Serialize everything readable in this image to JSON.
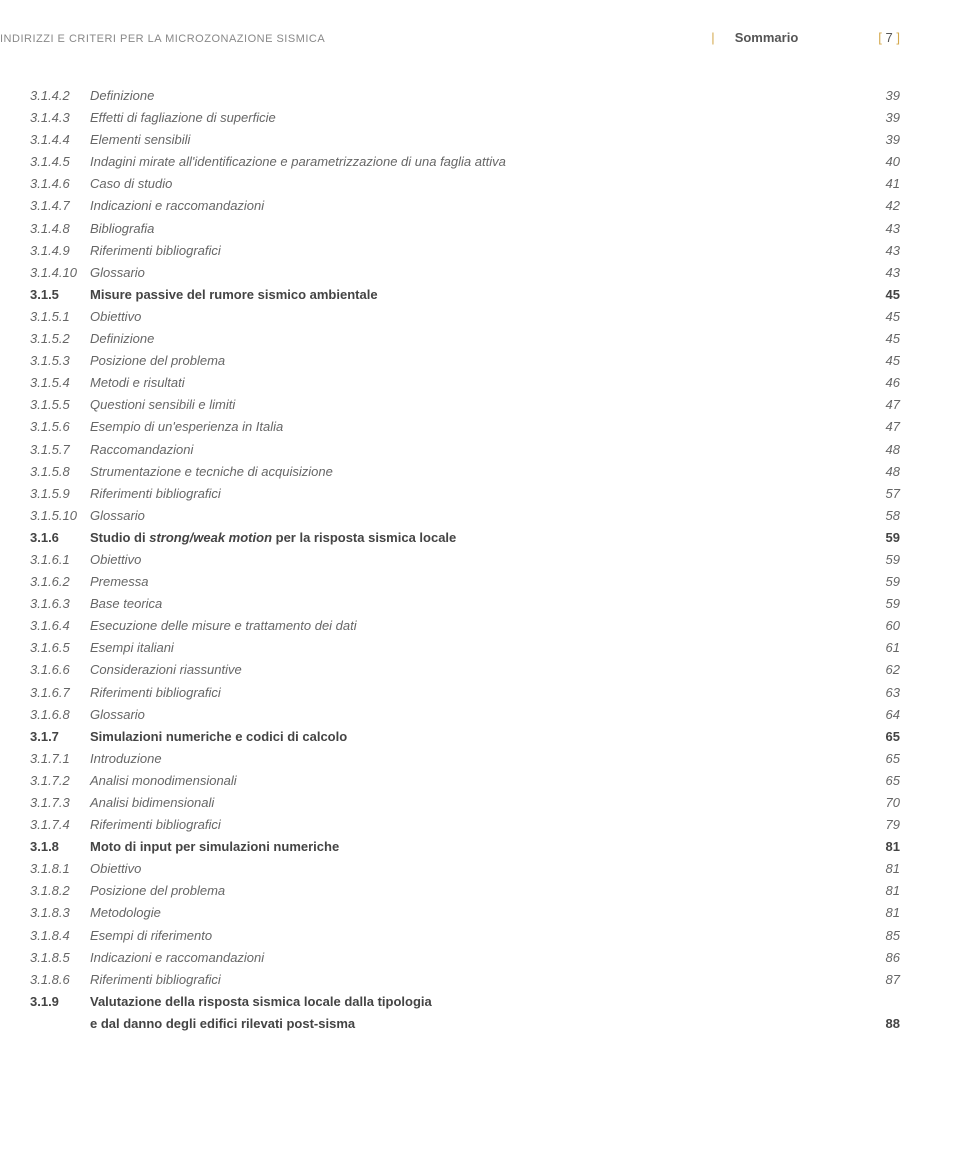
{
  "header": {
    "title": "INDIRIZZI E CRITERI PER LA MICROZONAZIONE SISMICA",
    "section": "Sommario",
    "page_bracket_open": "[",
    "page_number": "7",
    "page_bracket_close": "]",
    "divider": "|"
  },
  "toc": [
    {
      "num": "3.1.4.2",
      "label": "Definizione",
      "page": "39",
      "style": "italic light"
    },
    {
      "num": "3.1.4.3",
      "label": "Effetti di fagliazione di superficie",
      "page": "39",
      "style": "italic light"
    },
    {
      "num": "3.1.4.4",
      "label": "Elementi sensibili",
      "page": "39",
      "style": "italic light"
    },
    {
      "num": "3.1.4.5",
      "label": "Indagini mirate all'identificazione e parametrizzazione di una faglia attiva",
      "page": "40",
      "style": "italic light"
    },
    {
      "num": "3.1.4.6",
      "label": "Caso di studio",
      "page": "41",
      "style": "italic light"
    },
    {
      "num": "3.1.4.7",
      "label": "Indicazioni e raccomandazioni",
      "page": "42",
      "style": "italic light"
    },
    {
      "num": "3.1.4.8",
      "label": "Bibliografia",
      "page": "43",
      "style": "italic light"
    },
    {
      "num": "3.1.4.9",
      "label": "Riferimenti bibliografici",
      "page": "43",
      "style": "italic light"
    },
    {
      "num": "3.1.4.10",
      "label": "Glossario",
      "page": "43",
      "style": "italic light"
    },
    {
      "num": "3.1.5",
      "label": "Misure passive del rumore sismico ambientale",
      "page": "45",
      "style": "bold"
    },
    {
      "num": "3.1.5.1",
      "label": "Obiettivo",
      "page": "45",
      "style": "italic light"
    },
    {
      "num": "3.1.5.2",
      "label": "Definizione",
      "page": "45",
      "style": "italic light"
    },
    {
      "num": "3.1.5.3",
      "label": "Posizione del problema",
      "page": "45",
      "style": "italic light"
    },
    {
      "num": "3.1.5.4",
      "label": "Metodi e risultati",
      "page": "46",
      "style": "italic light"
    },
    {
      "num": "3.1.5.5",
      "label": "Questioni sensibili e limiti",
      "page": "47",
      "style": "italic light"
    },
    {
      "num": "3.1.5.6",
      "label": "Esempio di un'esperienza in Italia",
      "page": "47",
      "style": "italic light"
    },
    {
      "num": "3.1.5.7",
      "label": "Raccomandazioni",
      "page": "48",
      "style": "italic light"
    },
    {
      "num": "3.1.5.8",
      "label": "Strumentazione e tecniche di acquisizione",
      "page": "48",
      "style": "italic light"
    },
    {
      "num": "3.1.5.9",
      "label": "Riferimenti bibliografici",
      "page": "57",
      "style": "italic light"
    },
    {
      "num": "3.1.5.10",
      "label": "Glossario",
      "page": "58",
      "style": "italic light"
    },
    {
      "num": "3.1.6",
      "label": "Studio di strong/weak motion per la risposta sismica locale",
      "page": "59",
      "style": "bold",
      "label_italic_part": "strong/weak motion"
    },
    {
      "num": "3.1.6.1",
      "label": "Obiettivo",
      "page": "59",
      "style": "italic light"
    },
    {
      "num": "3.1.6.2",
      "label": "Premessa",
      "page": "59",
      "style": "italic light"
    },
    {
      "num": "3.1.6.3",
      "label": "Base teorica",
      "page": "59",
      "style": "italic light"
    },
    {
      "num": "3.1.6.4",
      "label": "Esecuzione delle misure e trattamento dei dati",
      "page": "60",
      "style": "italic light"
    },
    {
      "num": "3.1.6.5",
      "label": "Esempi italiani",
      "page": "61",
      "style": "italic light"
    },
    {
      "num": "3.1.6.6",
      "label": "Considerazioni riassuntive",
      "page": "62",
      "style": "italic light"
    },
    {
      "num": "3.1.6.7",
      "label": "Riferimenti bibliografici",
      "page": "63",
      "style": "italic light"
    },
    {
      "num": "3.1.6.8",
      "label": "Glossario",
      "page": "64",
      "style": "italic light"
    },
    {
      "num": "3.1.7",
      "label": "Simulazioni numeriche e codici di calcolo",
      "page": "65",
      "style": "bold"
    },
    {
      "num": "3.1.7.1",
      "label": "Introduzione",
      "page": "65",
      "style": "italic light"
    },
    {
      "num": "3.1.7.2",
      "label": "Analisi monodimensionali",
      "page": "65",
      "style": "italic light"
    },
    {
      "num": "3.1.7.3",
      "label": "Analisi bidimensionali",
      "page": "70",
      "style": "italic light"
    },
    {
      "num": "3.1.7.4",
      "label": "Riferimenti bibliografici",
      "page": "79",
      "style": "italic light"
    },
    {
      "num": "3.1.8",
      "label": "Moto di input per simulazioni numeriche",
      "page": "81",
      "style": "bold"
    },
    {
      "num": "3.1.8.1",
      "label": "Obiettivo",
      "page": "81",
      "style": "italic light"
    },
    {
      "num": "3.1.8.2",
      "label": "Posizione del problema",
      "page": "81",
      "style": "italic light"
    },
    {
      "num": "3.1.8.3",
      "label": "Metodologie",
      "page": "81",
      "style": "italic light"
    },
    {
      "num": "3.1.8.4",
      "label": "Esempi di riferimento",
      "page": "85",
      "style": "italic light"
    },
    {
      "num": "3.1.8.5",
      "label": "Indicazioni e raccomandazioni",
      "page": "86",
      "style": "italic light"
    },
    {
      "num": "3.1.8.6",
      "label": "Riferimenti bibliografici",
      "page": "87",
      "style": "italic light"
    },
    {
      "num": "3.1.9",
      "label": "Valutazione della risposta sismica locale dalla tipologia",
      "page": "",
      "style": "bold"
    },
    {
      "num": "",
      "label": "e dal danno degli edifici rilevati post-sisma",
      "page": "88",
      "style": "bold continuation"
    }
  ]
}
